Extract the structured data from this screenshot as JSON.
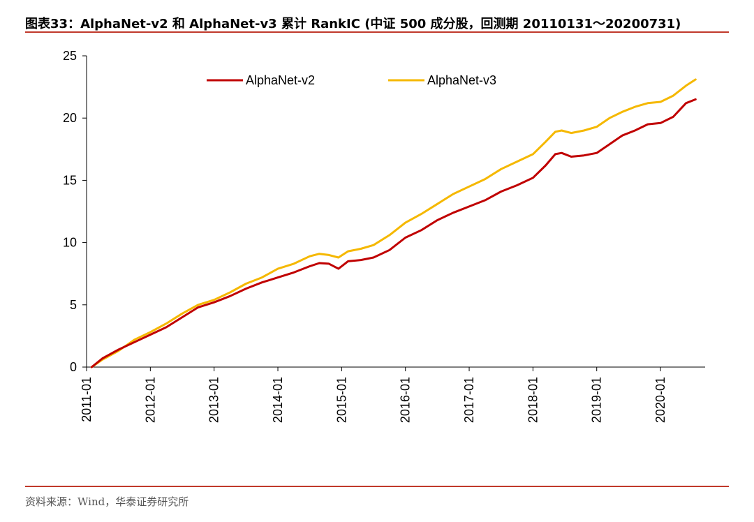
{
  "header": {
    "figure_label": "图表33：",
    "title": "AlphaNet-v2 和 AlphaNet-v3 累计 RankIC (中证 500 成分股，回测期 20110131～20200731)"
  },
  "footer": {
    "source": "资料来源：Wind，华泰证券研究所"
  },
  "colors": {
    "accent_rule": "#c0392b",
    "series_v2": "#c00000",
    "series_v3": "#f5b800"
  },
  "chart_data": {
    "type": "line",
    "title": "AlphaNet-v2 和 AlphaNet-v3 累计 RankIC (中证 500 成分股，回测期 20110131～20200731)",
    "xlabel": "",
    "ylabel": "",
    "ylim": [
      0,
      25
    ],
    "xlim": [
      2011.0,
      2020.7
    ],
    "yticks": [
      0,
      5,
      10,
      15,
      20,
      25
    ],
    "xticks": [
      {
        "value": 2011.0,
        "label": "2011-01"
      },
      {
        "value": 2012.0,
        "label": "2012-01"
      },
      {
        "value": 2013.0,
        "label": "2013-01"
      },
      {
        "value": 2014.0,
        "label": "2014-01"
      },
      {
        "value": 2015.0,
        "label": "2015-01"
      },
      {
        "value": 2016.0,
        "label": "2016-01"
      },
      {
        "value": 2017.0,
        "label": "2017-01"
      },
      {
        "value": 2018.0,
        "label": "2018-01"
      },
      {
        "value": 2019.0,
        "label": "2019-01"
      },
      {
        "value": 2020.0,
        "label": "2020-01"
      }
    ],
    "grid": false,
    "legend_position": "top",
    "series": [
      {
        "name": "AlphaNet-v2",
        "color": "#c00000",
        "points": [
          [
            2011.08,
            0.0
          ],
          [
            2011.25,
            0.7
          ],
          [
            2011.5,
            1.4
          ],
          [
            2011.75,
            2.0
          ],
          [
            2012.0,
            2.6
          ],
          [
            2012.25,
            3.2
          ],
          [
            2012.5,
            4.0
          ],
          [
            2012.75,
            4.8
          ],
          [
            2013.0,
            5.2
          ],
          [
            2013.25,
            5.7
          ],
          [
            2013.5,
            6.3
          ],
          [
            2013.75,
            6.8
          ],
          [
            2014.0,
            7.2
          ],
          [
            2014.25,
            7.6
          ],
          [
            2014.5,
            8.1
          ],
          [
            2014.65,
            8.35
          ],
          [
            2014.8,
            8.3
          ],
          [
            2014.95,
            7.9
          ],
          [
            2015.1,
            8.5
          ],
          [
            2015.3,
            8.6
          ],
          [
            2015.5,
            8.8
          ],
          [
            2015.75,
            9.4
          ],
          [
            2016.0,
            10.4
          ],
          [
            2016.25,
            11.0
          ],
          [
            2016.5,
            11.8
          ],
          [
            2016.75,
            12.4
          ],
          [
            2017.0,
            12.9
          ],
          [
            2017.25,
            13.4
          ],
          [
            2017.5,
            14.1
          ],
          [
            2017.75,
            14.6
          ],
          [
            2018.0,
            15.2
          ],
          [
            2018.2,
            16.2
          ],
          [
            2018.35,
            17.1
          ],
          [
            2018.45,
            17.2
          ],
          [
            2018.6,
            16.9
          ],
          [
            2018.8,
            17.0
          ],
          [
            2019.0,
            17.2
          ],
          [
            2019.2,
            17.9
          ],
          [
            2019.4,
            18.6
          ],
          [
            2019.6,
            19.0
          ],
          [
            2019.8,
            19.5
          ],
          [
            2020.0,
            19.6
          ],
          [
            2020.2,
            20.1
          ],
          [
            2020.4,
            21.2
          ],
          [
            2020.55,
            21.5
          ]
        ]
      },
      {
        "name": "AlphaNet-v3",
        "color": "#f5b800",
        "points": [
          [
            2011.08,
            0.0
          ],
          [
            2011.25,
            0.6
          ],
          [
            2011.5,
            1.3
          ],
          [
            2011.75,
            2.2
          ],
          [
            2012.0,
            2.8
          ],
          [
            2012.25,
            3.5
          ],
          [
            2012.5,
            4.3
          ],
          [
            2012.75,
            5.0
          ],
          [
            2013.0,
            5.4
          ],
          [
            2013.25,
            6.0
          ],
          [
            2013.5,
            6.7
          ],
          [
            2013.75,
            7.2
          ],
          [
            2014.0,
            7.9
          ],
          [
            2014.25,
            8.3
          ],
          [
            2014.5,
            8.9
          ],
          [
            2014.65,
            9.1
          ],
          [
            2014.8,
            9.0
          ],
          [
            2014.95,
            8.8
          ],
          [
            2015.1,
            9.3
          ],
          [
            2015.3,
            9.5
          ],
          [
            2015.5,
            9.8
          ],
          [
            2015.75,
            10.6
          ],
          [
            2016.0,
            11.6
          ],
          [
            2016.25,
            12.3
          ],
          [
            2016.5,
            13.1
          ],
          [
            2016.75,
            13.9
          ],
          [
            2017.0,
            14.5
          ],
          [
            2017.25,
            15.1
          ],
          [
            2017.5,
            15.9
          ],
          [
            2017.75,
            16.5
          ],
          [
            2018.0,
            17.1
          ],
          [
            2018.2,
            18.1
          ],
          [
            2018.35,
            18.9
          ],
          [
            2018.45,
            19.0
          ],
          [
            2018.6,
            18.8
          ],
          [
            2018.8,
            19.0
          ],
          [
            2019.0,
            19.3
          ],
          [
            2019.2,
            20.0
          ],
          [
            2019.4,
            20.5
          ],
          [
            2019.6,
            20.9
          ],
          [
            2019.8,
            21.2
          ],
          [
            2020.0,
            21.3
          ],
          [
            2020.2,
            21.8
          ],
          [
            2020.4,
            22.6
          ],
          [
            2020.55,
            23.1
          ]
        ]
      }
    ]
  }
}
